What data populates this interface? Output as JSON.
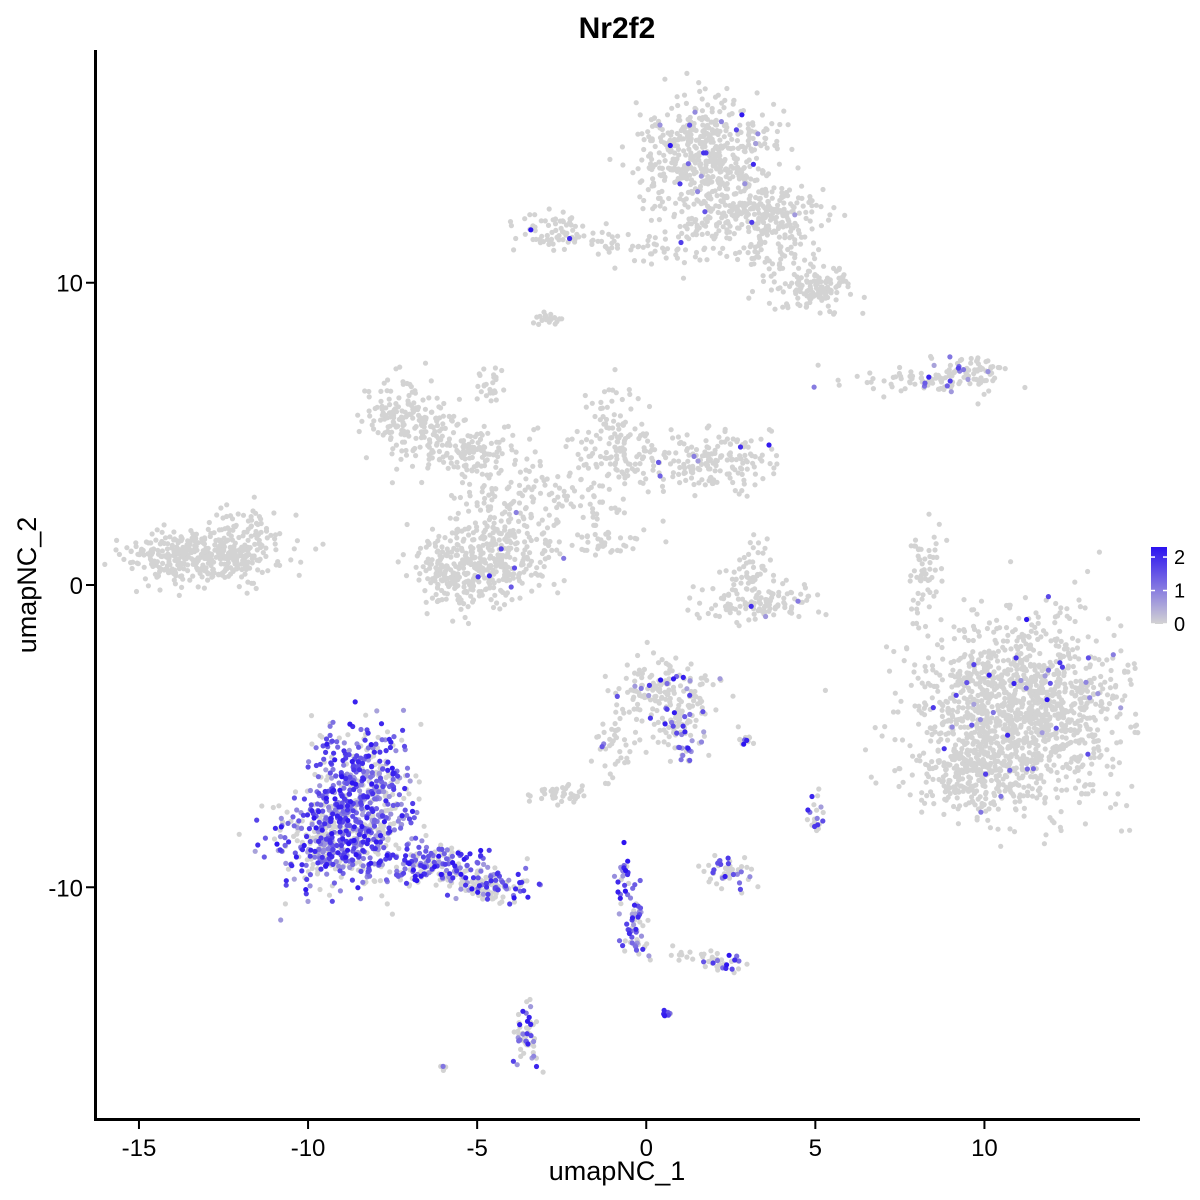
{
  "chart_data": {
    "type": "scatter",
    "title": "Nr2f2",
    "xlabel": "umapNC_1",
    "ylabel": "umapNC_2",
    "xlim": [
      -16.3,
      14.6
    ],
    "ylim": [
      -17.7,
      17.7
    ],
    "xticks": [
      -15,
      -10,
      -5,
      0,
      5,
      10
    ],
    "yticks": [
      -10,
      0,
      10
    ],
    "grid": false,
    "legend": {
      "placement": "right",
      "ticks": [
        0,
        1,
        2
      ],
      "range": [
        0,
        2.3
      ],
      "colors": {
        "low": "#d3d3d3",
        "high": "#2b12f0"
      }
    },
    "clusters": [
      {
        "cx": -13.1,
        "cy": 1.0,
        "sx": 1.1,
        "sy": 0.45,
        "n": 420,
        "expr": 0.0
      },
      {
        "cx": -11.8,
        "cy": 1.8,
        "sx": 0.5,
        "sy": 0.5,
        "n": 50,
        "expr": 0.0
      },
      {
        "cx": 1.7,
        "cy": 14.3,
        "sx": 1.0,
        "sy": 0.9,
        "n": 520,
        "expr": 0.03
      },
      {
        "cx": 3.4,
        "cy": 12.4,
        "sx": 1.0,
        "sy": 0.45,
        "n": 160,
        "expr": 0.03
      },
      {
        "cx": 5.1,
        "cy": 9.8,
        "sx": 0.5,
        "sy": 0.35,
        "n": 120,
        "expr": 0.0
      },
      {
        "cx": 4.1,
        "cy": 11.1,
        "sx": 0.6,
        "sy": 0.8,
        "n": 90,
        "expr": 0.0
      },
      {
        "cx": 2.0,
        "cy": 12.0,
        "sx": 1.0,
        "sy": 0.8,
        "n": 120,
        "expr": 0.0
      },
      {
        "cx": -2.8,
        "cy": 11.7,
        "sx": 0.6,
        "sy": 0.35,
        "n": 70,
        "expr": 0.03
      },
      {
        "cx": -1.3,
        "cy": 11.4,
        "sx": 0.6,
        "sy": 0.2,
        "n": 20,
        "expr": 0.0
      },
      {
        "cx": 0.3,
        "cy": 11.1,
        "sx": 0.6,
        "sy": 0.2,
        "n": 30,
        "expr": 0.05
      },
      {
        "cx": -2.9,
        "cy": 8.8,
        "sx": 0.2,
        "sy": 0.15,
        "n": 20,
        "expr": 0.0
      },
      {
        "cx": 8.6,
        "cy": 6.8,
        "sx": 1.2,
        "sy": 0.25,
        "n": 90,
        "expr": 0.05
      },
      {
        "cx": 9.5,
        "cy": 7.0,
        "sx": 0.5,
        "sy": 0.3,
        "n": 50,
        "expr": 0.1
      },
      {
        "cx": -7.0,
        "cy": 5.5,
        "sx": 0.7,
        "sy": 0.6,
        "n": 180,
        "expr": 0.0
      },
      {
        "cx": -5.4,
        "cy": 4.5,
        "sx": 0.8,
        "sy": 0.4,
        "n": 90,
        "expr": 0.0
      },
      {
        "cx": -4.2,
        "cy": 3.3,
        "sx": 1.0,
        "sy": 0.9,
        "n": 120,
        "expr": 0.0
      },
      {
        "cx": -1.0,
        "cy": 5.2,
        "sx": 0.5,
        "sy": 0.7,
        "n": 80,
        "expr": 0.0
      },
      {
        "cx": -0.5,
        "cy": 4.2,
        "sx": 1.0,
        "sy": 0.5,
        "n": 80,
        "expr": 0.0
      },
      {
        "cx": 2.1,
        "cy": 4.0,
        "sx": 0.8,
        "sy": 0.5,
        "n": 160,
        "expr": 0.02
      },
      {
        "cx": -2.3,
        "cy": 2.8,
        "sx": 1.0,
        "sy": 0.5,
        "n": 60,
        "expr": 0.0
      },
      {
        "cx": -4.8,
        "cy": 1.0,
        "sx": 0.5,
        "sy": 0.8,
        "n": 80,
        "expr": 0.0
      },
      {
        "cx": -5.9,
        "cy": 0.6,
        "sx": 0.6,
        "sy": 0.7,
        "n": 160,
        "expr": 0.0
      },
      {
        "cx": -4.3,
        "cy": 0.8,
        "sx": 0.7,
        "sy": 0.7,
        "n": 220,
        "expr": 0.03
      },
      {
        "cx": -1.1,
        "cy": 1.4,
        "sx": 0.6,
        "sy": 0.25,
        "n": 40,
        "expr": 0.0
      },
      {
        "cx": -4.6,
        "cy": 6.6,
        "sx": 0.2,
        "sy": 0.3,
        "n": 25,
        "expr": 0.0
      },
      {
        "cx": 3.1,
        "cy": 0.5,
        "sx": 0.4,
        "sy": 0.5,
        "n": 50,
        "expr": 0.0
      },
      {
        "cx": 3.2,
        "cy": -0.6,
        "sx": 0.9,
        "sy": 0.35,
        "n": 120,
        "expr": 0.02
      },
      {
        "cx": 8.2,
        "cy": 0.3,
        "sx": 0.25,
        "sy": 0.8,
        "n": 60,
        "expr": 0.0
      },
      {
        "cx": 11.0,
        "cy": -4.2,
        "sx": 1.6,
        "sy": 1.5,
        "n": 1400,
        "expr": 0.02
      },
      {
        "cx": 9.7,
        "cy": -6.3,
        "sx": 0.7,
        "sy": 0.6,
        "n": 200,
        "expr": 0.0
      },
      {
        "cx": 0.5,
        "cy": -3.5,
        "sx": 0.8,
        "sy": 0.5,
        "n": 160,
        "expr": 0.1
      },
      {
        "cx": 0.9,
        "cy": -4.7,
        "sx": 0.5,
        "sy": 0.35,
        "n": 60,
        "expr": 0.2
      },
      {
        "cx": 1.1,
        "cy": -5.6,
        "sx": 0.15,
        "sy": 0.2,
        "n": 15,
        "expr": 0.7
      },
      {
        "cx": -0.9,
        "cy": -5.5,
        "sx": 0.3,
        "sy": 0.6,
        "n": 40,
        "expr": 0.1
      },
      {
        "cx": -2.5,
        "cy": -6.9,
        "sx": 0.4,
        "sy": 0.15,
        "n": 40,
        "expr": 0.0
      },
      {
        "cx": 2.9,
        "cy": -5.1,
        "sx": 0.15,
        "sy": 0.07,
        "n": 12,
        "expr": 0.3
      },
      {
        "cx": -8.4,
        "cy": -6.5,
        "sx": 0.7,
        "sy": 0.9,
        "n": 380,
        "expr": 0.65
      },
      {
        "cx": -9.0,
        "cy": -8.5,
        "sx": 1.0,
        "sy": 0.8,
        "n": 520,
        "expr": 0.6
      },
      {
        "cx": -6.2,
        "cy": -9.3,
        "sx": 0.7,
        "sy": 0.3,
        "n": 170,
        "expr": 0.55
      },
      {
        "cx": -4.5,
        "cy": -10.0,
        "sx": 0.6,
        "sy": 0.25,
        "n": 110,
        "expr": 0.5
      },
      {
        "cx": -0.6,
        "cy": -9.8,
        "sx": 0.15,
        "sy": 0.5,
        "n": 30,
        "expr": 0.7
      },
      {
        "cx": -0.3,
        "cy": -11.0,
        "sx": 0.15,
        "sy": 0.4,
        "n": 30,
        "expr": 0.6
      },
      {
        "cx": -0.3,
        "cy": -11.8,
        "sx": 0.2,
        "sy": 0.2,
        "n": 20,
        "expr": 0.5
      },
      {
        "cx": 0.6,
        "cy": -14.2,
        "sx": 0.07,
        "sy": 0.05,
        "n": 10,
        "expr": 0.8
      },
      {
        "cx": -3.5,
        "cy": -15.0,
        "sx": 0.2,
        "sy": 0.5,
        "n": 55,
        "expr": 0.3
      },
      {
        "cx": 2.3,
        "cy": -9.5,
        "sx": 0.4,
        "sy": 0.3,
        "n": 50,
        "expr": 0.25
      },
      {
        "cx": 2.2,
        "cy": -12.5,
        "sx": 0.3,
        "sy": 0.15,
        "n": 30,
        "expr": 0.3
      },
      {
        "cx": 5.0,
        "cy": -7.6,
        "sx": 0.15,
        "sy": 0.3,
        "n": 20,
        "expr": 0.3
      },
      {
        "cx": 1.3,
        "cy": -12.3,
        "sx": 0.4,
        "sy": 0.15,
        "n": 15,
        "expr": 0.0
      },
      {
        "cx": -6.0,
        "cy": -16.0,
        "sx": 0.1,
        "sy": 0.05,
        "n": 5,
        "expr": 0.3
      }
    ]
  }
}
